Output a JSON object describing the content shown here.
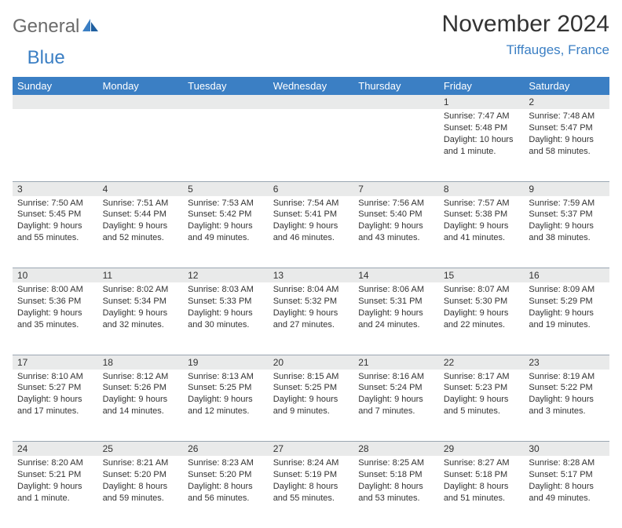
{
  "brand": {
    "part1": "General",
    "part2": "Blue"
  },
  "title": "November 2024",
  "location": "Tiffauges, France",
  "colors": {
    "header_bg": "#3b7fc4",
    "header_fg": "#ffffff",
    "daynum_bg": "#e9eaea",
    "daynum_border": "#9aa6b2",
    "text": "#333333",
    "location_color": "#3b7fc4",
    "logo_gray": "#6b6b6b"
  },
  "day_names": [
    "Sunday",
    "Monday",
    "Tuesday",
    "Wednesday",
    "Thursday",
    "Friday",
    "Saturday"
  ],
  "weeks": [
    [
      null,
      null,
      null,
      null,
      null,
      {
        "n": "1",
        "sunrise": "7:47 AM",
        "sunset": "5:48 PM",
        "dl1": "Daylight: 10 hours",
        "dl2": "and 1 minute."
      },
      {
        "n": "2",
        "sunrise": "7:48 AM",
        "sunset": "5:47 PM",
        "dl1": "Daylight: 9 hours",
        "dl2": "and 58 minutes."
      }
    ],
    [
      {
        "n": "3",
        "sunrise": "7:50 AM",
        "sunset": "5:45 PM",
        "dl1": "Daylight: 9 hours",
        "dl2": "and 55 minutes."
      },
      {
        "n": "4",
        "sunrise": "7:51 AM",
        "sunset": "5:44 PM",
        "dl1": "Daylight: 9 hours",
        "dl2": "and 52 minutes."
      },
      {
        "n": "5",
        "sunrise": "7:53 AM",
        "sunset": "5:42 PM",
        "dl1": "Daylight: 9 hours",
        "dl2": "and 49 minutes."
      },
      {
        "n": "6",
        "sunrise": "7:54 AM",
        "sunset": "5:41 PM",
        "dl1": "Daylight: 9 hours",
        "dl2": "and 46 minutes."
      },
      {
        "n": "7",
        "sunrise": "7:56 AM",
        "sunset": "5:40 PM",
        "dl1": "Daylight: 9 hours",
        "dl2": "and 43 minutes."
      },
      {
        "n": "8",
        "sunrise": "7:57 AM",
        "sunset": "5:38 PM",
        "dl1": "Daylight: 9 hours",
        "dl2": "and 41 minutes."
      },
      {
        "n": "9",
        "sunrise": "7:59 AM",
        "sunset": "5:37 PM",
        "dl1": "Daylight: 9 hours",
        "dl2": "and 38 minutes."
      }
    ],
    [
      {
        "n": "10",
        "sunrise": "8:00 AM",
        "sunset": "5:36 PM",
        "dl1": "Daylight: 9 hours",
        "dl2": "and 35 minutes."
      },
      {
        "n": "11",
        "sunrise": "8:02 AM",
        "sunset": "5:34 PM",
        "dl1": "Daylight: 9 hours",
        "dl2": "and 32 minutes."
      },
      {
        "n": "12",
        "sunrise": "8:03 AM",
        "sunset": "5:33 PM",
        "dl1": "Daylight: 9 hours",
        "dl2": "and 30 minutes."
      },
      {
        "n": "13",
        "sunrise": "8:04 AM",
        "sunset": "5:32 PM",
        "dl1": "Daylight: 9 hours",
        "dl2": "and 27 minutes."
      },
      {
        "n": "14",
        "sunrise": "8:06 AM",
        "sunset": "5:31 PM",
        "dl1": "Daylight: 9 hours",
        "dl2": "and 24 minutes."
      },
      {
        "n": "15",
        "sunrise": "8:07 AM",
        "sunset": "5:30 PM",
        "dl1": "Daylight: 9 hours",
        "dl2": "and 22 minutes."
      },
      {
        "n": "16",
        "sunrise": "8:09 AM",
        "sunset": "5:29 PM",
        "dl1": "Daylight: 9 hours",
        "dl2": "and 19 minutes."
      }
    ],
    [
      {
        "n": "17",
        "sunrise": "8:10 AM",
        "sunset": "5:27 PM",
        "dl1": "Daylight: 9 hours",
        "dl2": "and 17 minutes."
      },
      {
        "n": "18",
        "sunrise": "8:12 AM",
        "sunset": "5:26 PM",
        "dl1": "Daylight: 9 hours",
        "dl2": "and 14 minutes."
      },
      {
        "n": "19",
        "sunrise": "8:13 AM",
        "sunset": "5:25 PM",
        "dl1": "Daylight: 9 hours",
        "dl2": "and 12 minutes."
      },
      {
        "n": "20",
        "sunrise": "8:15 AM",
        "sunset": "5:25 PM",
        "dl1": "Daylight: 9 hours",
        "dl2": "and 9 minutes."
      },
      {
        "n": "21",
        "sunrise": "8:16 AM",
        "sunset": "5:24 PM",
        "dl1": "Daylight: 9 hours",
        "dl2": "and 7 minutes."
      },
      {
        "n": "22",
        "sunrise": "8:17 AM",
        "sunset": "5:23 PM",
        "dl1": "Daylight: 9 hours",
        "dl2": "and 5 minutes."
      },
      {
        "n": "23",
        "sunrise": "8:19 AM",
        "sunset": "5:22 PM",
        "dl1": "Daylight: 9 hours",
        "dl2": "and 3 minutes."
      }
    ],
    [
      {
        "n": "24",
        "sunrise": "8:20 AM",
        "sunset": "5:21 PM",
        "dl1": "Daylight: 9 hours",
        "dl2": "and 1 minute."
      },
      {
        "n": "25",
        "sunrise": "8:21 AM",
        "sunset": "5:20 PM",
        "dl1": "Daylight: 8 hours",
        "dl2": "and 59 minutes."
      },
      {
        "n": "26",
        "sunrise": "8:23 AM",
        "sunset": "5:20 PM",
        "dl1": "Daylight: 8 hours",
        "dl2": "and 56 minutes."
      },
      {
        "n": "27",
        "sunrise": "8:24 AM",
        "sunset": "5:19 PM",
        "dl1": "Daylight: 8 hours",
        "dl2": "and 55 minutes."
      },
      {
        "n": "28",
        "sunrise": "8:25 AM",
        "sunset": "5:18 PM",
        "dl1": "Daylight: 8 hours",
        "dl2": "and 53 minutes."
      },
      {
        "n": "29",
        "sunrise": "8:27 AM",
        "sunset": "5:18 PM",
        "dl1": "Daylight: 8 hours",
        "dl2": "and 51 minutes."
      },
      {
        "n": "30",
        "sunrise": "8:28 AM",
        "sunset": "5:17 PM",
        "dl1": "Daylight: 8 hours",
        "dl2": "and 49 minutes."
      }
    ]
  ],
  "labels": {
    "sunrise_prefix": "Sunrise: ",
    "sunset_prefix": "Sunset: "
  }
}
